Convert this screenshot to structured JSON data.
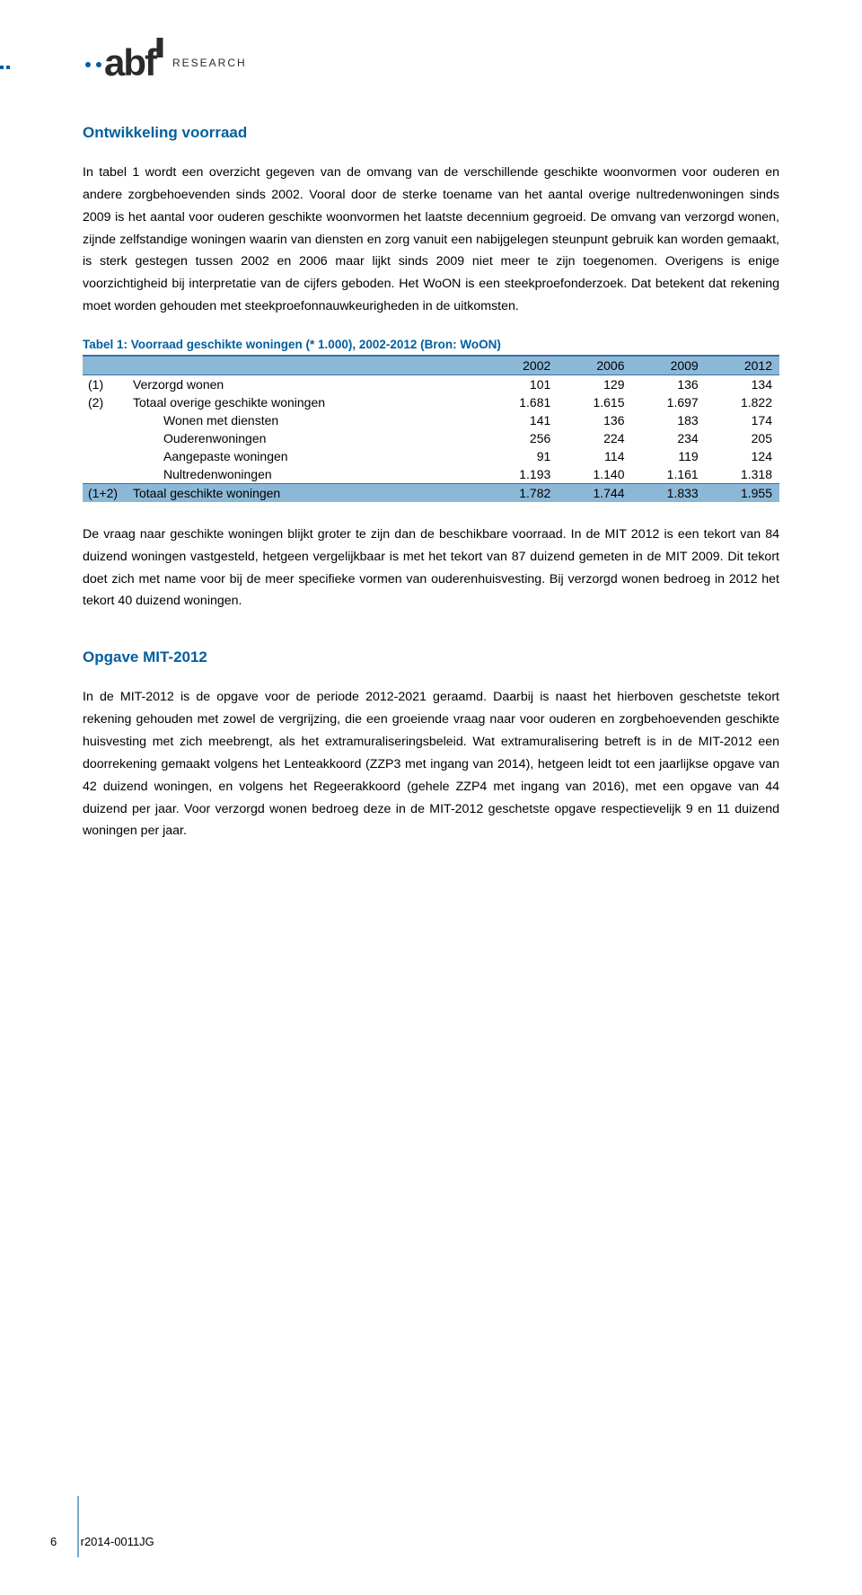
{
  "logo": {
    "brand_main": "abf",
    "brand_sub": "RESEARCH",
    "dot_color": "#005f9e",
    "text_color": "#2b2b2b"
  },
  "sections": {
    "s1_title": "Ontwikkeling voorraad",
    "s1_p1": "In tabel 1 wordt een overzicht gegeven van de omvang van de verschillende geschikte woonvormen voor ouderen en andere zorgbehoevenden sinds 2002. Vooral door de sterke toename van het aantal overige nultredenwoningen sinds 2009 is het aantal voor ouderen geschikte woonvormen het laatste decennium gegroeid. De omvang van verzorgd wonen, zijnde zelfstandige woningen waarin van diensten en zorg vanuit een nabijgelegen steunpunt gebruik kan worden gemaakt, is sterk gestegen tussen 2002 en 2006 maar lijkt sinds 2009 niet meer te zijn toegenomen. Overigens is enige voorzichtigheid bij interpretatie van de cijfers geboden. Het WoON is een steekproefonderzoek. Dat betekent dat rekening moet worden gehouden met steekproefonnauwkeurigheden in de uitkomsten.",
    "s1_p2": "De vraag naar geschikte woningen blijkt groter te zijn dan de beschikbare voorraad. In de MIT 2012 is een tekort van 84 duizend woningen vastgesteld, hetgeen vergelijkbaar is met het tekort van 87 duizend gemeten in de MIT 2009. Dit tekort doet zich met name voor bij de meer specifieke vormen van ouderenhuisvesting. Bij verzorgd wonen bedroeg in 2012 het tekort 40 duizend woningen.",
    "s2_title": "Opgave MIT-2012",
    "s2_p1": "In de MIT-2012 is de opgave voor de periode 2012-2021 geraamd. Daarbij is naast het hierboven geschetste tekort rekening gehouden met zowel de vergrijzing, die een groeiende vraag naar voor ouderen en zorgbehoevenden geschikte huisvesting met zich meebrengt, als het extramuraliseringsbeleid. Wat extramuralisering betreft is in de MIT-2012 een doorrekening gemaakt volgens het Lenteakkoord (ZZP3 met ingang van 2014), hetgeen leidt tot een jaarlijkse opgave van 42 duizend woningen, en volgens het Regeerakkoord (gehele ZZP4 met ingang van 2016), met een opgave van 44 duizend per jaar. Voor verzorgd wonen bedroeg deze in de MIT-2012 geschetste opgave respectievelijk 9 en 11 duizend woningen per jaar."
  },
  "table": {
    "caption": "Tabel 1: Voorraad geschikte woningen (* 1.000), 2002-2012 (Bron: WoON)",
    "header_bg": "#8cb8d8",
    "border_color": "#3a6ea5",
    "columns": [
      "2002",
      "2006",
      "2009",
      "2012"
    ],
    "rows": [
      {
        "idx": "(1)",
        "label": "Verzorgd wonen",
        "indent": false,
        "vals": [
          "101",
          "129",
          "136",
          "134"
        ]
      },
      {
        "idx": "(2)",
        "label": "Totaal overige geschikte woningen",
        "indent": false,
        "vals": [
          "1.681",
          "1.615",
          "1.697",
          "1.822"
        ]
      },
      {
        "idx": "",
        "label": "Wonen met diensten",
        "indent": true,
        "vals": [
          "141",
          "136",
          "183",
          "174"
        ]
      },
      {
        "idx": "",
        "label": "Ouderenwoningen",
        "indent": true,
        "vals": [
          "256",
          "224",
          "234",
          "205"
        ]
      },
      {
        "idx": "",
        "label": "Aangepaste woningen",
        "indent": true,
        "vals": [
          "91",
          "114",
          "119",
          "124"
        ]
      },
      {
        "idx": "",
        "label": "Nultredenwoningen",
        "indent": true,
        "vals": [
          "1.193",
          "1.140",
          "1.161",
          "1.318"
        ]
      }
    ],
    "total": {
      "idx": "(1+2)",
      "label": "Totaal geschikte woningen",
      "vals": [
        "1.782",
        "1.744",
        "1.833",
        "1.955"
      ]
    }
  },
  "footer": {
    "page_num": "6",
    "doc_id": "r2014-0011JG"
  }
}
